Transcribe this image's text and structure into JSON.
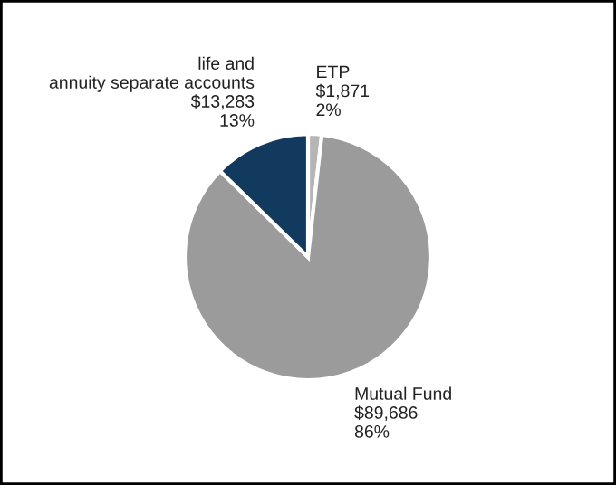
{
  "chart_data": {
    "type": "pie",
    "categories": [
      "ETP",
      "Mutual Fund",
      "life and\nannuity separate accounts"
    ],
    "values": [
      1871,
      89686,
      13283
    ],
    "value_labels": [
      "$1,871\n2%",
      "$89,686\n86%",
      "$13,283\n13%"
    ],
    "colors": [
      "#b5b5b5",
      "#9b9b9b",
      "#123a5e"
    ]
  }
}
